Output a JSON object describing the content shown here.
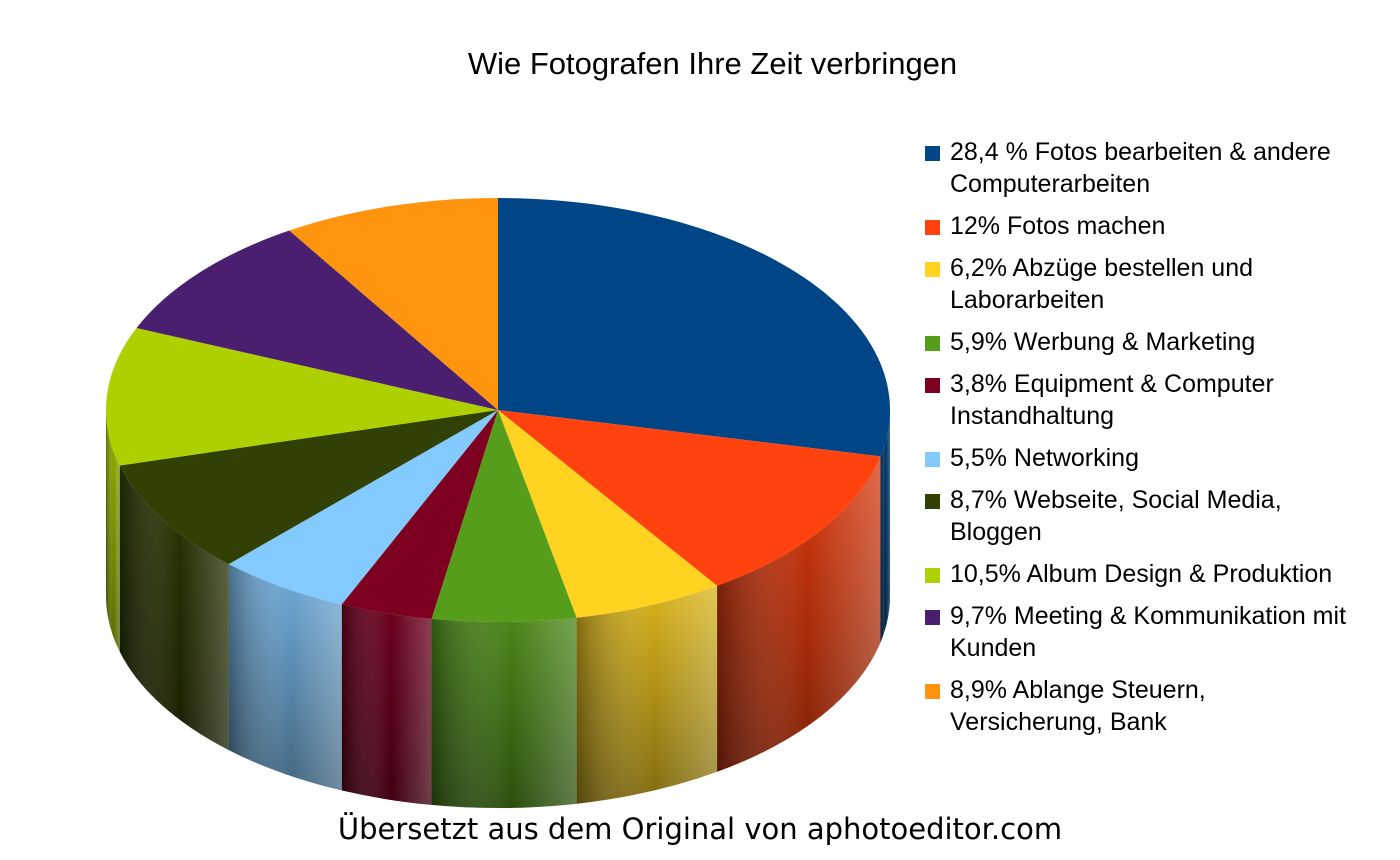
{
  "chart_data": {
    "type": "pie",
    "style": "3d",
    "title": "Wie Fotografen Ihre Zeit verbringen",
    "legend_position": "right",
    "slices": [
      {
        "label": "28,4 % Fotos bearbeiten & andere Computerarbeiten",
        "value": 28.4,
        "color": "#004586"
      },
      {
        "label": "12% Fotos machen",
        "value": 12.0,
        "color": "#ff420e"
      },
      {
        "label": "6,2% Abzüge bestellen und Laborarbeiten",
        "value": 6.2,
        "color": "#ffd320"
      },
      {
        "label": "5,9% Werbung & Marketing",
        "value": 5.9,
        "color": "#579d1c"
      },
      {
        "label": "3,8% Equipment & Computer Instandhaltung",
        "value": 3.8,
        "color": "#7e0021"
      },
      {
        "label": "5,5% Networking",
        "value": 5.5,
        "color": "#83caff"
      },
      {
        "label": "8,7% Webseite, Social Media, Bloggen",
        "value": 8.7,
        "color": "#314004"
      },
      {
        "label": "10,5% Album Design & Produktion",
        "value": 10.5,
        "color": "#aecf00"
      },
      {
        "label": "9,7% Meeting & Kommunikation mit Kunden",
        "value": 9.7,
        "color": "#4b1f6f"
      },
      {
        "label": "8,9% Ablange Steuern, Versicherung, Bank",
        "value": 8.9,
        "color": "#ff950e"
      }
    ]
  },
  "footer": {
    "note": "Übersetzt aus dem Original von aphotoeditor.com"
  }
}
